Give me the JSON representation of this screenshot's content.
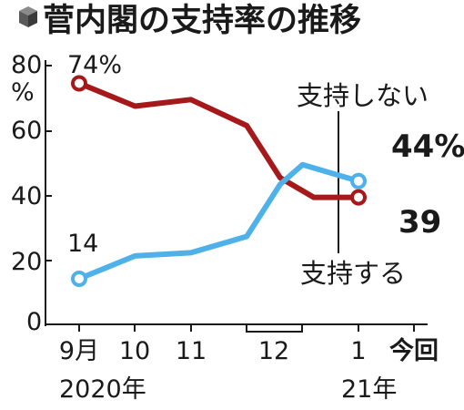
{
  "title": "菅内閣の支持率の推移",
  "title_icon": "cube-icon",
  "colors": {
    "support": "#4fb1ea",
    "nonsupport": "#a6191b",
    "axis": "#1a1a1a",
    "text": "#1a1a1a"
  },
  "chart_data": {
    "type": "line",
    "y_unit": "%",
    "ylim": [
      0,
      80
    ],
    "yticks": [
      "0",
      "20",
      "40",
      "60",
      "80"
    ],
    "x_labels": [
      "9月",
      "10",
      "11",
      "12",
      "1",
      "今回"
    ],
    "x_year_labels": [
      "2020年",
      "21年"
    ],
    "grid": false,
    "series": [
      {
        "name": "支持しない",
        "color": "#a6191b",
        "points": [
          {
            "x": 9.0,
            "y": 74
          },
          {
            "x": 10.0,
            "y": 67
          },
          {
            "x": 11.0,
            "y": 69
          },
          {
            "x": 12.0,
            "y": 61
          },
          {
            "x": 12.6,
            "y": 45
          },
          {
            "x": 13.2,
            "y": 39
          },
          {
            "x": 14.0,
            "y": 39
          }
        ],
        "start_label": "74%",
        "end_label": "39"
      },
      {
        "name": "支持する",
        "color": "#4fb1ea",
        "points": [
          {
            "x": 9.0,
            "y": 14
          },
          {
            "x": 10.0,
            "y": 21
          },
          {
            "x": 11.0,
            "y": 22
          },
          {
            "x": 12.0,
            "y": 27
          },
          {
            "x": 12.6,
            "y": 43
          },
          {
            "x": 13.0,
            "y": 49
          },
          {
            "x": 14.0,
            "y": 44
          }
        ],
        "start_label": "14",
        "end_label": "44%"
      }
    ]
  }
}
